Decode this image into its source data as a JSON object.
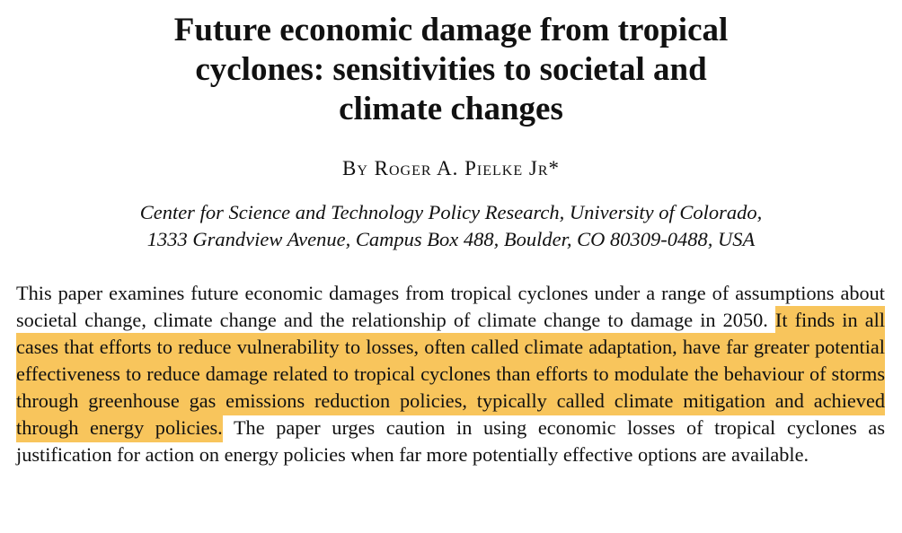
{
  "header": {
    "title_lines": [
      "Future economic damage from tropical",
      "cyclones: sensitivities to societal and",
      "climate changes"
    ],
    "byline": "By Roger A. Pielke Jr*",
    "affiliation_lines": [
      "Center for Science and Technology Policy Research, University of Colorado,",
      "1333 Grandview Avenue, Campus Box 488, Boulder, CO 80309-0488, USA"
    ]
  },
  "abstract": {
    "text_before": "This paper examines future economic damages from tropical cyclones under a range of assumptions about societal change, climate change and the relationship of climate change to damage in 2050.",
    "highlighted": "It finds in all cases that efforts to reduce vulnerability to losses, often called climate adaptation, have far greater potential effectiveness to reduce damage related to tropical cyclones than efforts to modulate the behaviour of storms through greenhouse gas emissions reduction policies, typically called climate mitigation and achieved through energy policies.",
    "text_after": "The paper urges caution in using economic losses of tropical cyclones as justification for action on energy policies when far more potentially effective options are available."
  }
}
